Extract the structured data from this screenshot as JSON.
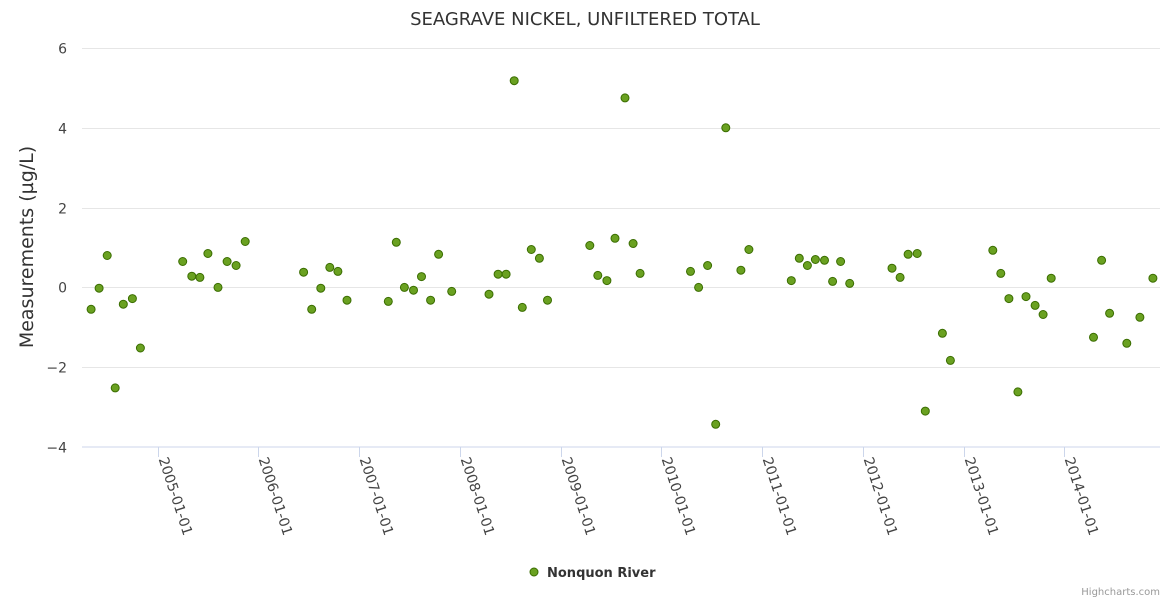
{
  "chart_data": {
    "type": "scatter",
    "title": "SEAGRAVE NICKEL, UNFILTERED TOTAL",
    "xlabel": "",
    "ylabel": "Measurements (µg/L)",
    "ylim": [
      -4,
      6
    ],
    "yticks": [
      6,
      4,
      2,
      0,
      -2,
      -4
    ],
    "ytick_labels": [
      "6",
      "4",
      "2",
      "0",
      "−2",
      "−4"
    ],
    "xlim": [
      2004.25,
      2014.95
    ],
    "xticks": [
      2005,
      2006,
      2007,
      2008,
      2009,
      2010,
      2011,
      2012,
      2013,
      2014
    ],
    "xtick_labels": [
      "2005-01-01",
      "2006-01-01",
      "2007-01-01",
      "2008-01-01",
      "2009-01-01",
      "2010-01-01",
      "2011-01-01",
      "2012-01-01",
      "2013-01-01",
      "2014-01-01"
    ],
    "grid": true,
    "legend": "bottom-center",
    "credits": "Highcharts.com",
    "series": [
      {
        "name": "Nonquon River",
        "color": "#6aa121",
        "stroke": "#3a6d00",
        "points": [
          [
            2004.34,
            -0.55
          ],
          [
            2004.42,
            -0.02
          ],
          [
            2004.5,
            0.8
          ],
          [
            2004.58,
            -2.52
          ],
          [
            2004.66,
            -0.42
          ],
          [
            2004.75,
            -0.28
          ],
          [
            2004.83,
            -1.52
          ],
          [
            2005.25,
            0.65
          ],
          [
            2005.34,
            0.28
          ],
          [
            2005.42,
            0.25
          ],
          [
            2005.5,
            0.85
          ],
          [
            2005.6,
            0.0
          ],
          [
            2005.69,
            0.65
          ],
          [
            2005.78,
            0.55
          ],
          [
            2005.87,
            1.15
          ],
          [
            2006.45,
            0.38
          ],
          [
            2006.53,
            -0.55
          ],
          [
            2006.62,
            -0.02
          ],
          [
            2006.71,
            0.5
          ],
          [
            2006.79,
            0.4
          ],
          [
            2006.88,
            -0.32
          ],
          [
            2007.29,
            -0.35
          ],
          [
            2007.37,
            1.13
          ],
          [
            2007.45,
            0.0
          ],
          [
            2007.54,
            -0.07
          ],
          [
            2007.62,
            0.27
          ],
          [
            2007.71,
            -0.32
          ],
          [
            2007.79,
            0.83
          ],
          [
            2007.92,
            -0.1
          ],
          [
            2008.29,
            -0.17
          ],
          [
            2008.38,
            0.33
          ],
          [
            2008.46,
            0.33
          ],
          [
            2008.54,
            5.18
          ],
          [
            2008.62,
            -0.5
          ],
          [
            2008.71,
            0.95
          ],
          [
            2008.79,
            0.73
          ],
          [
            2008.87,
            -0.32
          ],
          [
            2009.29,
            1.05
          ],
          [
            2009.37,
            0.3
          ],
          [
            2009.46,
            0.17
          ],
          [
            2009.54,
            1.23
          ],
          [
            2009.64,
            4.75
          ],
          [
            2009.72,
            1.1
          ],
          [
            2009.79,
            0.35
          ],
          [
            2010.29,
            0.4
          ],
          [
            2010.37,
            0.0
          ],
          [
            2010.46,
            0.55
          ],
          [
            2010.54,
            -3.43
          ],
          [
            2010.64,
            4.0
          ],
          [
            2010.79,
            0.43
          ],
          [
            2010.87,
            0.95
          ],
          [
            2011.29,
            0.17
          ],
          [
            2011.37,
            0.73
          ],
          [
            2011.45,
            0.55
          ],
          [
            2011.53,
            0.7
          ],
          [
            2011.62,
            0.68
          ],
          [
            2011.7,
            0.15
          ],
          [
            2011.78,
            0.65
          ],
          [
            2011.87,
            0.1
          ],
          [
            2012.29,
            0.48
          ],
          [
            2012.37,
            0.25
          ],
          [
            2012.45,
            0.83
          ],
          [
            2012.54,
            0.85
          ],
          [
            2012.62,
            -3.1
          ],
          [
            2012.79,
            -1.15
          ],
          [
            2012.87,
            -1.83
          ],
          [
            2013.29,
            0.93
          ],
          [
            2013.37,
            0.35
          ],
          [
            2013.45,
            -0.28
          ],
          [
            2013.54,
            -2.62
          ],
          [
            2013.62,
            -0.23
          ],
          [
            2013.71,
            -0.45
          ],
          [
            2013.79,
            -0.68
          ],
          [
            2013.87,
            0.23
          ],
          [
            2014.29,
            -1.25
          ],
          [
            2014.37,
            0.68
          ],
          [
            2014.45,
            -0.65
          ],
          [
            2014.62,
            -1.4
          ],
          [
            2014.75,
            -0.75
          ],
          [
            2014.88,
            0.23
          ]
        ]
      }
    ]
  }
}
